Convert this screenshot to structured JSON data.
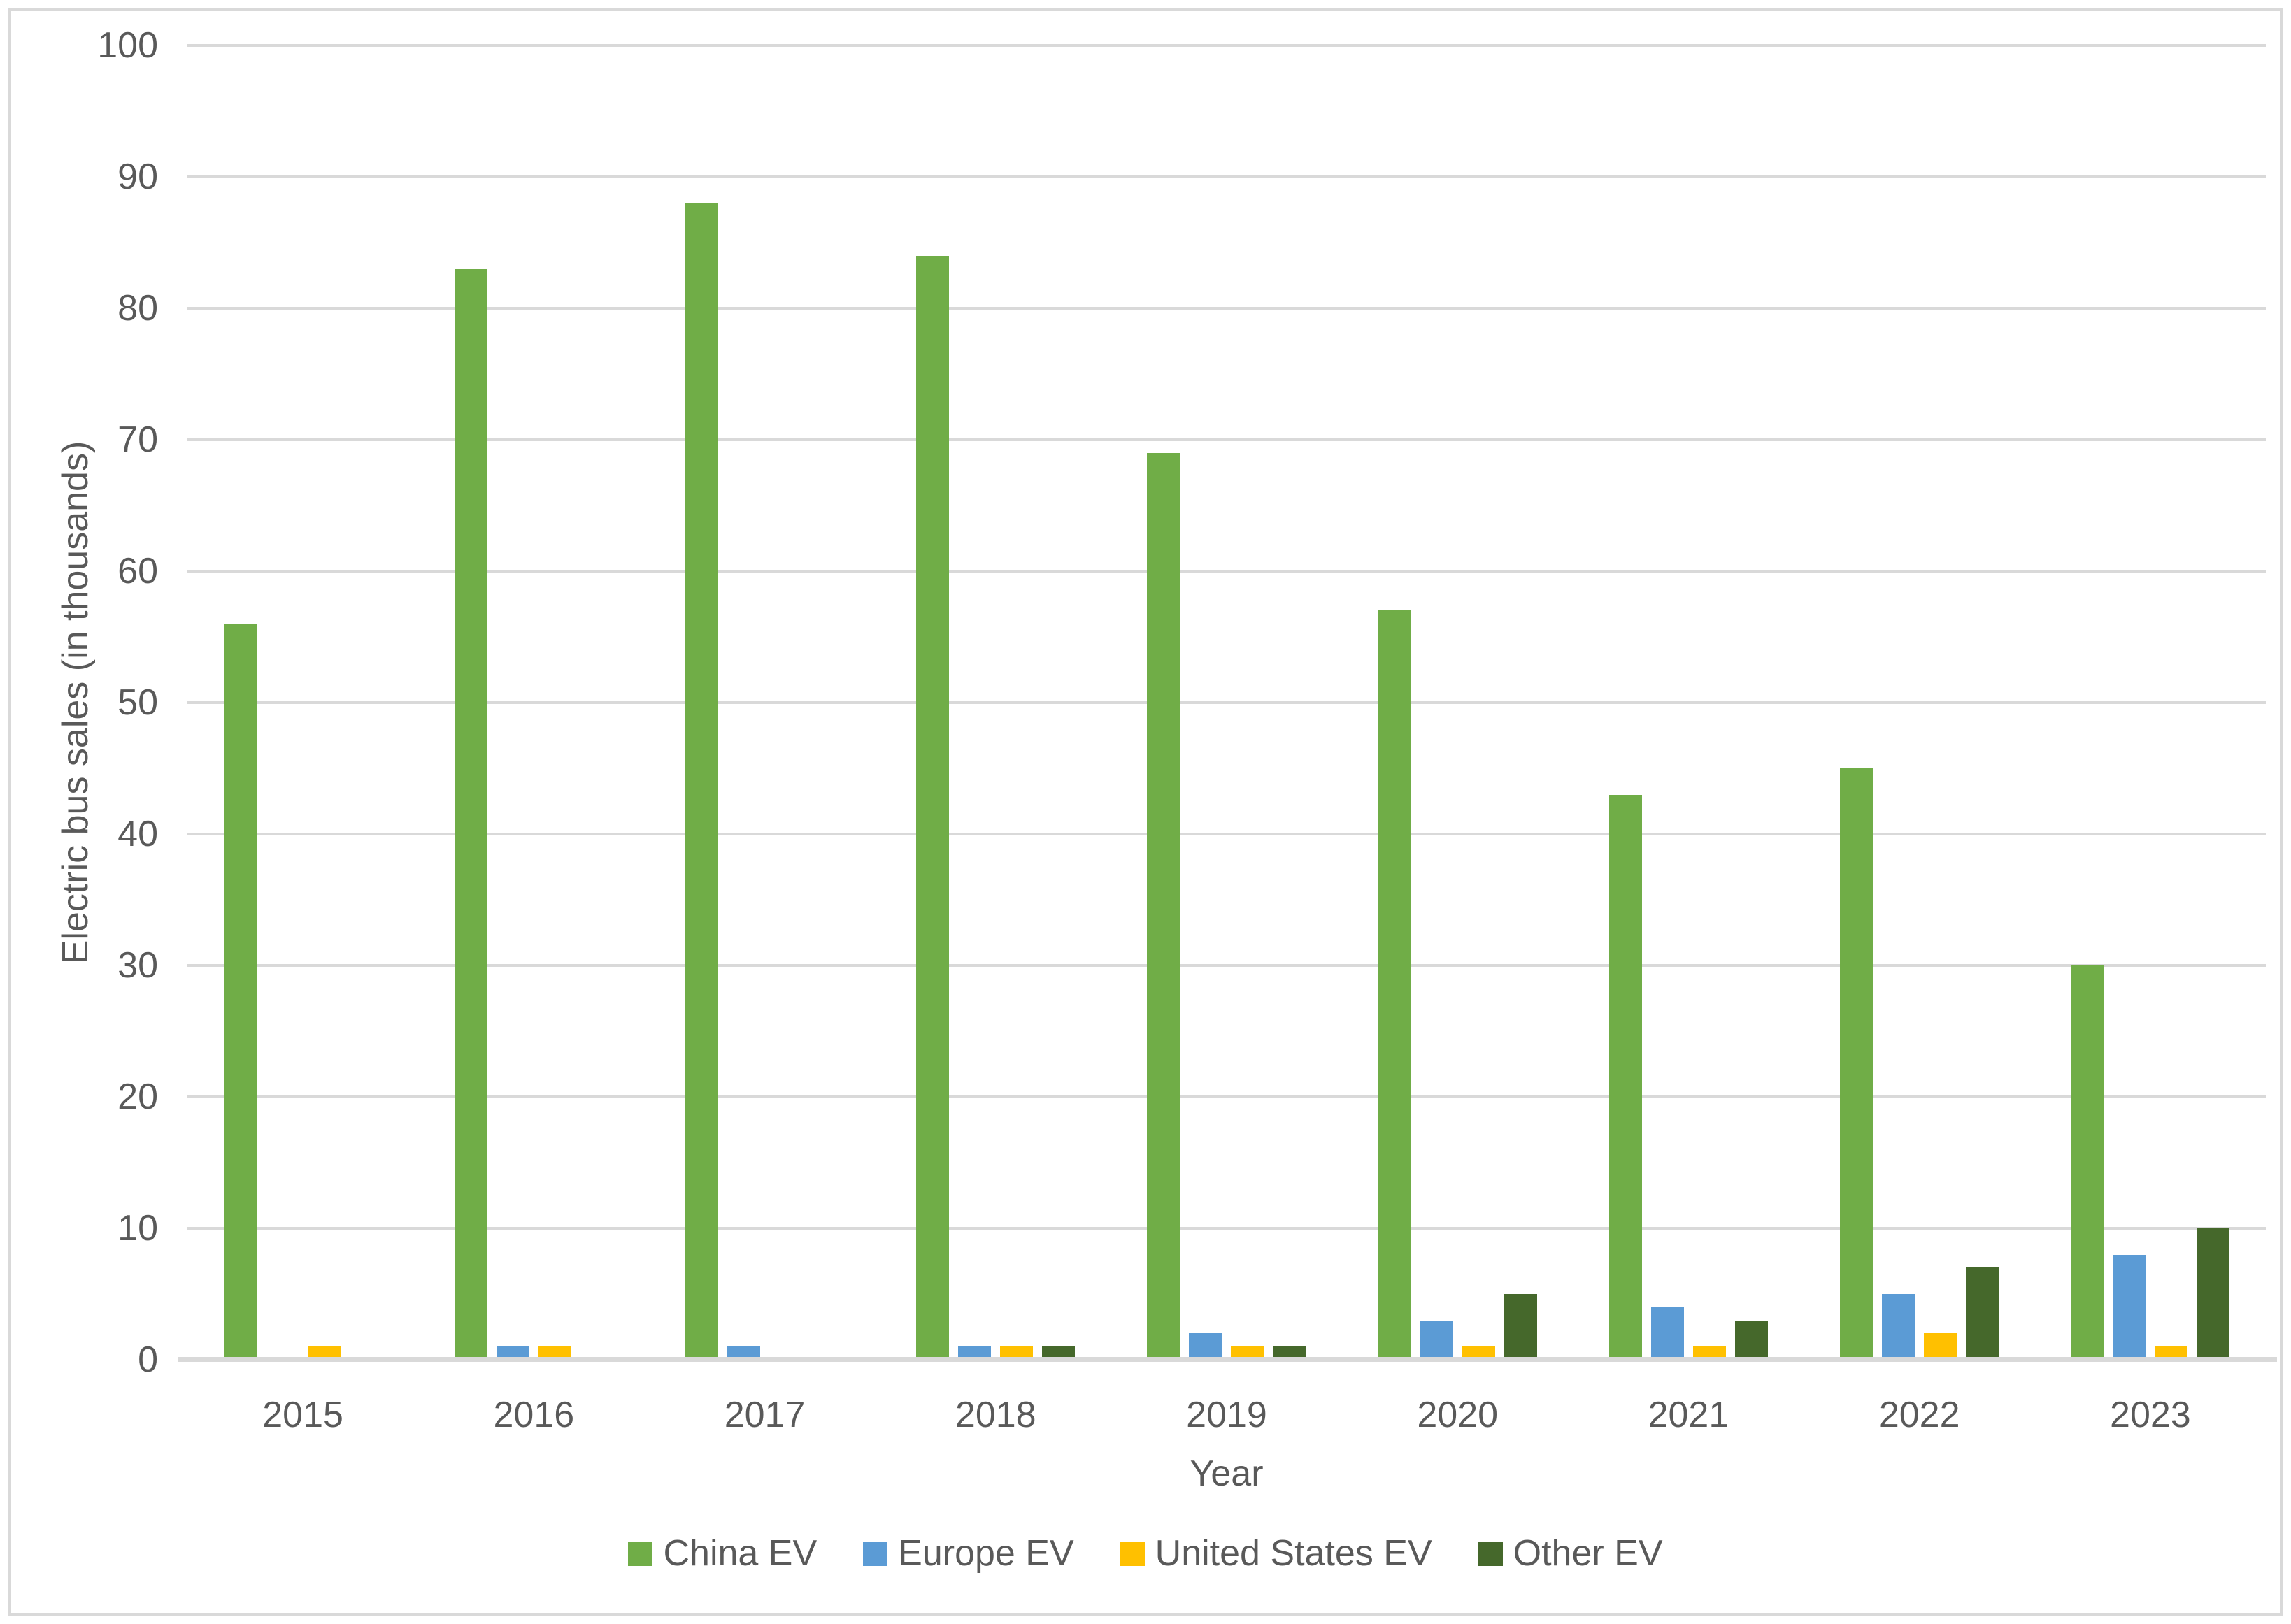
{
  "chart_data": {
    "type": "bar",
    "title": "",
    "categories": [
      "2015",
      "2016",
      "2017",
      "2018",
      "2019",
      "2020",
      "2021",
      "2022",
      "2023"
    ],
    "series": [
      {
        "name": "China EV",
        "color": "#70AD47",
        "values": [
          56,
          83,
          88,
          84,
          69,
          57,
          43,
          45,
          30
        ]
      },
      {
        "name": "Europe EV",
        "color": "#5B9BD5",
        "values": [
          0,
          1,
          1,
          1,
          2,
          3,
          4,
          5,
          8
        ]
      },
      {
        "name": "United States EV",
        "color": "#FFC000",
        "values": [
          1,
          1,
          0,
          1,
          1,
          1,
          1,
          2,
          1
        ]
      },
      {
        "name": "Other EV",
        "color": "#45682B",
        "values": [
          0,
          0,
          0,
          1,
          1,
          5,
          3,
          7,
          10
        ]
      }
    ],
    "xlabel": "Year",
    "ylabel": "Electric bus sales (in thousands)",
    "ylim": [
      0,
      100
    ],
    "ytick_step": 10,
    "y_ticks": [
      "0",
      "10",
      "20",
      "30",
      "40",
      "50",
      "60",
      "70",
      "80",
      "90",
      "100"
    ],
    "grid": true,
    "legend_position": "bottom"
  },
  "colors": {
    "grid": "#D9D9D9",
    "axis": "#D9D9D9",
    "text": "#595959",
    "border": "#D9D9D9",
    "background": "#FFFFFF"
  }
}
